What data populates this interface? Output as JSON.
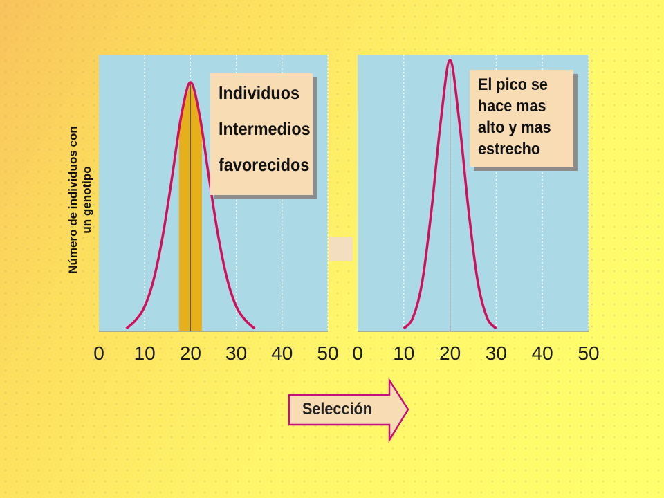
{
  "y_axis_label": [
    "Número de individuos con",
    "un genotipo"
  ],
  "notes": {
    "left": [
      "Individuos",
      "Intermedios",
      "favorecidos"
    ],
    "right": [
      "El pico se",
      "hace mas",
      "alto y mas",
      "estrecho"
    ]
  },
  "arrow_label": "Selección",
  "colors": {
    "plot_background": "#acd9e6",
    "curve": "#d10f5a",
    "highlight_band": "#e6b01c",
    "note_background": "#f7dcb4",
    "arrow_fill": "#f7dcb4",
    "arrow_border": "#c8107c"
  },
  "chart_data": [
    {
      "type": "line",
      "x_ticks": [
        "0",
        "10",
        "20",
        "30",
        "40",
        "50"
      ],
      "xlim": [
        0,
        50
      ],
      "ylim": [
        0,
        1
      ],
      "series": [
        {
          "x": [
            6,
            8,
            10,
            12,
            14,
            16,
            18,
            20,
            22,
            24,
            26,
            28,
            30,
            32,
            34
          ],
          "y": [
            0.01,
            0.04,
            0.09,
            0.19,
            0.35,
            0.56,
            0.78,
            0.9,
            0.78,
            0.56,
            0.35,
            0.19,
            0.09,
            0.04,
            0.01
          ]
        }
      ],
      "highlight": {
        "x_range": [
          17.5,
          22.5
        ]
      },
      "peak_x": 20,
      "grid": true
    },
    {
      "type": "line",
      "x_ticks": [
        "0",
        "10",
        "20",
        "30",
        "40",
        "50"
      ],
      "xlim": [
        0,
        50
      ],
      "ylim": [
        0,
        1
      ],
      "series": [
        {
          "x": [
            10,
            12,
            14,
            16,
            18,
            20,
            22,
            24,
            26,
            28,
            30
          ],
          "y": [
            0.01,
            0.05,
            0.18,
            0.44,
            0.76,
            0.98,
            0.76,
            0.44,
            0.18,
            0.05,
            0.01
          ]
        }
      ],
      "peak_x": 20,
      "grid": true
    }
  ]
}
